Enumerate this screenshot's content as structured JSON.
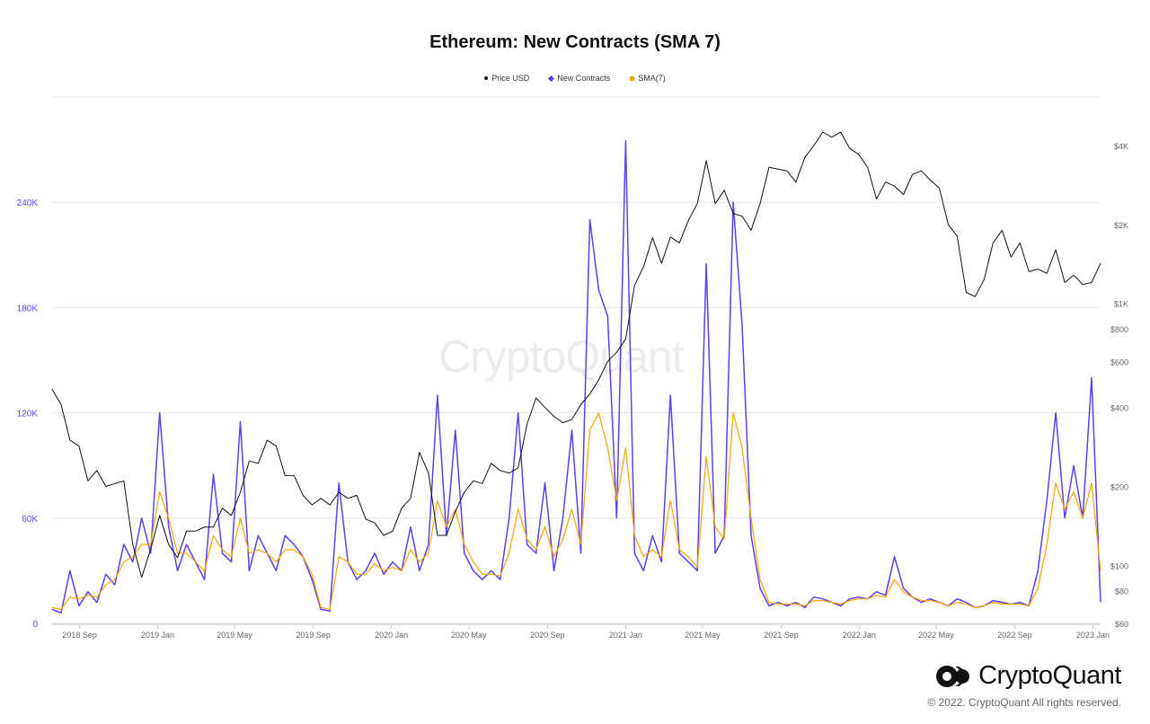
{
  "chart_data": {
    "type": "line",
    "title": "Ethereum: New Contracts (SMA 7)",
    "legend": [
      "Price USD",
      "New Contracts",
      "SMA(7)"
    ],
    "legend_position": "top-center",
    "start_date": "2018-07-20",
    "step_days": 14,
    "x_ticks": [
      "2018 Sep",
      "2019 Jan",
      "2019 May",
      "2019 Sep",
      "2020 Jan",
      "2020 May",
      "2020 Sep",
      "2021 Jan",
      "2021 May",
      "2021 Sep",
      "2022 Jan",
      "2022 May",
      "2022 Sep",
      "2023 Jan"
    ],
    "x_tick_dates": [
      "2018-09-01",
      "2019-01-01",
      "2019-05-01",
      "2019-09-01",
      "2020-01-01",
      "2020-05-01",
      "2020-09-01",
      "2021-01-01",
      "2021-05-01",
      "2021-09-01",
      "2022-01-01",
      "2022-05-01",
      "2022-09-01",
      "2023-01-01"
    ],
    "left_axis": {
      "scale": "linear",
      "range": [
        0,
        300000
      ],
      "ticks": [
        0,
        60000,
        120000,
        180000,
        240000
      ],
      "tick_labels": [
        "0",
        "60K",
        "120K",
        "180K",
        "240K"
      ],
      "color": "#5b3ff5"
    },
    "right_axis": {
      "scale": "log",
      "range": [
        60,
        4900
      ],
      "ticks": [
        60,
        80,
        100,
        200,
        400,
        600,
        800,
        1000,
        2000,
        4000
      ],
      "tick_labels": [
        "$60",
        "$80",
        "$100",
        "$200",
        "$400",
        "$600",
        "$800",
        "$1K",
        "$2K",
        "$4K"
      ]
    },
    "grid": true,
    "series": [
      {
        "name": "Price USD",
        "axis": "right",
        "color": "#111111",
        "values": [
          470,
          410,
          300,
          285,
          210,
          230,
          200,
          205,
          210,
          120,
          90,
          115,
          155,
          120,
          107,
          135,
          135,
          140,
          140,
          165,
          155,
          190,
          250,
          245,
          300,
          285,
          220,
          220,
          185,
          170,
          180,
          170,
          190,
          180,
          185,
          150,
          145,
          130,
          135,
          165,
          180,
          270,
          225,
          130,
          130,
          160,
          190,
          210,
          205,
          245,
          230,
          225,
          235,
          345,
          435,
          400,
          370,
          350,
          360,
          410,
          450,
          510,
          600,
          650,
          730,
          1170,
          1380,
          1780,
          1420,
          1790,
          1700,
          2070,
          2400,
          3500,
          2400,
          2700,
          2200,
          2150,
          1900,
          2400,
          3300,
          3250,
          3200,
          2900,
          3600,
          4000,
          4500,
          4300,
          4500,
          3900,
          3700,
          3300,
          2500,
          2900,
          2800,
          2600,
          3100,
          3200,
          2950,
          2750,
          2000,
          1800,
          1100,
          1060,
          1230,
          1700,
          1900,
          1500,
          1700,
          1320,
          1350,
          1300,
          1600,
          1200,
          1280,
          1180,
          1200,
          1420
        ]
      },
      {
        "name": "New Contracts",
        "axis": "left",
        "color": "#5b3ff5",
        "values": [
          8000,
          6000,
          30000,
          10000,
          18000,
          12000,
          28000,
          22000,
          45000,
          35000,
          60000,
          40000,
          120000,
          55000,
          30000,
          45000,
          35000,
          25000,
          85000,
          40000,
          35000,
          115000,
          30000,
          50000,
          40000,
          30000,
          50000,
          45000,
          38000,
          25000,
          8000,
          7000,
          80000,
          35000,
          25000,
          30000,
          40000,
          28000,
          35000,
          30000,
          55000,
          30000,
          45000,
          130000,
          50000,
          110000,
          40000,
          30000,
          25000,
          30000,
          25000,
          60000,
          120000,
          45000,
          40000,
          80000,
          30000,
          60000,
          110000,
          40000,
          230000,
          190000,
          175000,
          60000,
          275000,
          40000,
          30000,
          50000,
          35000,
          130000,
          40000,
          35000,
          30000,
          205000,
          40000,
          50000,
          240000,
          170000,
          50000,
          20000,
          10000,
          12000,
          10000,
          12000,
          9000,
          15000,
          14000,
          12000,
          10000,
          14000,
          15000,
          14000,
          18000,
          16000,
          38000,
          20000,
          15000,
          12000,
          14000,
          12000,
          10000,
          14000,
          12000,
          9000,
          10000,
          13000,
          12000,
          11000,
          12000,
          10000,
          30000,
          70000,
          120000,
          60000,
          90000,
          60000,
          140000,
          12000
        ]
      },
      {
        "name": "SMA(7)",
        "axis": "left",
        "color": "#f7a600",
        "values": [
          9000,
          8000,
          15000,
          14000,
          16000,
          15000,
          22000,
          25000,
          35000,
          38000,
          45000,
          45000,
          75000,
          60000,
          40000,
          40000,
          35000,
          30000,
          50000,
          42000,
          38000,
          60000,
          40000,
          42000,
          40000,
          35000,
          42000,
          42000,
          38000,
          28000,
          9000,
          8000,
          38000,
          35000,
          28000,
          28000,
          34000,
          30000,
          32000,
          30000,
          42000,
          35000,
          40000,
          70000,
          55000,
          65000,
          45000,
          35000,
          28000,
          28000,
          27000,
          40000,
          65000,
          48000,
          42000,
          55000,
          38000,
          48000,
          65000,
          45000,
          110000,
          120000,
          100000,
          70000,
          100000,
          50000,
          38000,
          42000,
          38000,
          70000,
          42000,
          38000,
          32000,
          95000,
          55000,
          48000,
          120000,
          100000,
          60000,
          25000,
          12000,
          11000,
          11000,
          11000,
          10000,
          13000,
          13000,
          12000,
          11000,
          13000,
          14000,
          14000,
          16000,
          15000,
          25000,
          18000,
          15000,
          13000,
          13000,
          12000,
          10000,
          12000,
          11000,
          9000,
          10000,
          12000,
          11000,
          11000,
          11000,
          10000,
          20000,
          45000,
          80000,
          65000,
          75000,
          60000,
          80000,
          30000
        ]
      }
    ]
  },
  "watermark": "CryptoQuant",
  "brand": {
    "name": "CryptoQuant",
    "copyright": "© 2022. CryptoQuant All rights reserved."
  }
}
